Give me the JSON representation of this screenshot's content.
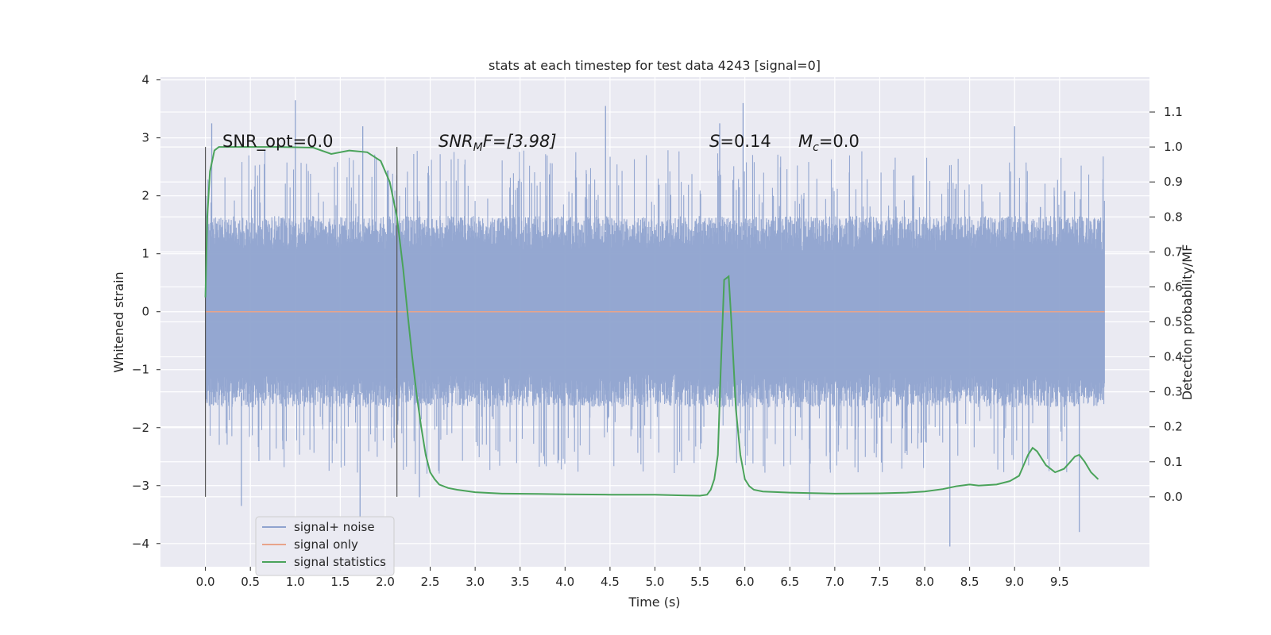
{
  "chart_data": {
    "type": "line",
    "title": "stats at each timestep for test data 4243 [signal=0]",
    "xlabel": "Time (s)",
    "ylabel_left": "Whitened strain",
    "ylabel_right": "Detection probability/MF",
    "xlim": [
      -0.5,
      10.5
    ],
    "ylim_left": [
      -4.4,
      4.05
    ],
    "ylim_right": [
      -0.2,
      1.2
    ],
    "x_ticks": [
      0.0,
      0.5,
      1.0,
      1.5,
      2.0,
      2.5,
      3.0,
      3.5,
      4.0,
      4.5,
      5.0,
      5.5,
      6.0,
      6.5,
      7.0,
      7.5,
      8.0,
      8.5,
      9.0,
      9.5
    ],
    "x_tick_labels": [
      "0.0",
      "0.5",
      "1.0",
      "1.5",
      "2.0",
      "2.5",
      "3.0",
      "3.5",
      "4.0",
      "4.5",
      "5.0",
      "5.5",
      "6.0",
      "6.5",
      "7.0",
      "7.5",
      "8.0",
      "8.5",
      "9.0",
      "9.5"
    ],
    "y_left_ticks": [
      4,
      3,
      2,
      1,
      0,
      -1,
      -2,
      -3,
      -4
    ],
    "y_left_tick_labels": [
      "4",
      "3",
      "2",
      "1",
      "0",
      "−1",
      "−2",
      "−3",
      "−4"
    ],
    "y_right_ticks": [
      1.1,
      1.0,
      0.9,
      0.8,
      0.7,
      0.6,
      0.5,
      0.4,
      0.3,
      0.2,
      0.1,
      0.0
    ],
    "y_right_tick_labels": [
      "1.1",
      "1.0",
      "0.9",
      "0.8",
      "0.7",
      "0.6",
      "0.5",
      "0.4",
      "0.3",
      "0.2",
      "0.1",
      "0.0"
    ],
    "grid": true,
    "legend_position": "lower-left",
    "legend": [
      {
        "label": "signal+ noise",
        "color": "#8fa3cf"
      },
      {
        "label": "signal only",
        "color": "#e8a48a"
      },
      {
        "label": "signal statistics",
        "color": "#4aa35a"
      }
    ],
    "annotations": {
      "snr_opt": "SNR_opt=0.0",
      "snr_mf_main": "SNR",
      "snr_mf_sub": "M",
      "snr_mf_rest": "F=[3.98]",
      "s_text": "S",
      "s_rest": "=0.14",
      "mc_main": "M",
      "mc_sub": "c",
      "mc_rest": "=0.0"
    },
    "vertical_markers_x": [
      0.0,
      2.13
    ],
    "series": [
      {
        "name": "signal+ noise",
        "kind": "noise",
        "x_range": [
          0.0,
          10.0
        ],
        "typical_envelope": [
          -1.6,
          1.6
        ],
        "upper_spikes": [
          {
            "x": 1.0,
            "y": 3.65
          },
          {
            "x": 0.07,
            "y": 3.25
          },
          {
            "x": 1.75,
            "y": 3.2
          },
          {
            "x": 4.45,
            "y": 3.55
          },
          {
            "x": 5.72,
            "y": 3.25
          },
          {
            "x": 5.98,
            "y": 3.6
          },
          {
            "x": 9.0,
            "y": 3.2
          }
        ],
        "lower_spikes": [
          {
            "x": 0.4,
            "y": -3.35
          },
          {
            "x": 1.72,
            "y": -3.55
          },
          {
            "x": 2.38,
            "y": -3.2
          },
          {
            "x": 6.72,
            "y": -3.25
          },
          {
            "x": 8.28,
            "y": -4.05
          },
          {
            "x": 9.72,
            "y": -3.8
          }
        ]
      },
      {
        "name": "signal only",
        "kind": "constant",
        "x": [
          0.0,
          10.0
        ],
        "values": [
          0.0,
          0.0
        ]
      },
      {
        "name": "signal statistics",
        "axis": "right",
        "x": [
          0.0,
          0.02,
          0.05,
          0.1,
          0.15,
          0.2,
          0.3,
          0.5,
          0.8,
          1.2,
          1.4,
          1.6,
          1.8,
          1.95,
          2.05,
          2.13,
          2.2,
          2.25,
          2.3,
          2.35,
          2.4,
          2.45,
          2.5,
          2.55,
          2.6,
          2.7,
          2.8,
          3.0,
          3.3,
          3.7,
          4.0,
          4.5,
          5.0,
          5.3,
          5.5,
          5.58,
          5.62,
          5.66,
          5.7,
          5.73,
          5.77,
          5.82,
          5.85,
          5.9,
          5.95,
          6.0,
          6.05,
          6.1,
          6.2,
          6.5,
          7.0,
          7.5,
          7.8,
          8.0,
          8.2,
          8.35,
          8.5,
          8.6,
          8.8,
          8.95,
          9.05,
          9.15,
          9.2,
          9.25,
          9.35,
          9.45,
          9.55,
          9.62,
          9.67,
          9.72,
          9.78,
          9.85,
          9.93
        ],
        "values": [
          0.57,
          0.8,
          0.93,
          0.99,
          1.0,
          1.0,
          1.0,
          1.0,
          1.0,
          0.998,
          0.98,
          0.99,
          0.985,
          0.96,
          0.9,
          0.8,
          0.65,
          0.52,
          0.4,
          0.29,
          0.2,
          0.12,
          0.07,
          0.05,
          0.035,
          0.025,
          0.02,
          0.013,
          0.009,
          0.008,
          0.007,
          0.006,
          0.006,
          0.004,
          0.003,
          0.006,
          0.02,
          0.05,
          0.12,
          0.35,
          0.62,
          0.63,
          0.5,
          0.25,
          0.12,
          0.05,
          0.03,
          0.02,
          0.015,
          0.012,
          0.009,
          0.01,
          0.012,
          0.015,
          0.022,
          0.03,
          0.035,
          0.032,
          0.035,
          0.045,
          0.06,
          0.12,
          0.14,
          0.13,
          0.09,
          0.07,
          0.08,
          0.1,
          0.115,
          0.12,
          0.1,
          0.07,
          0.05
        ]
      }
    ]
  }
}
